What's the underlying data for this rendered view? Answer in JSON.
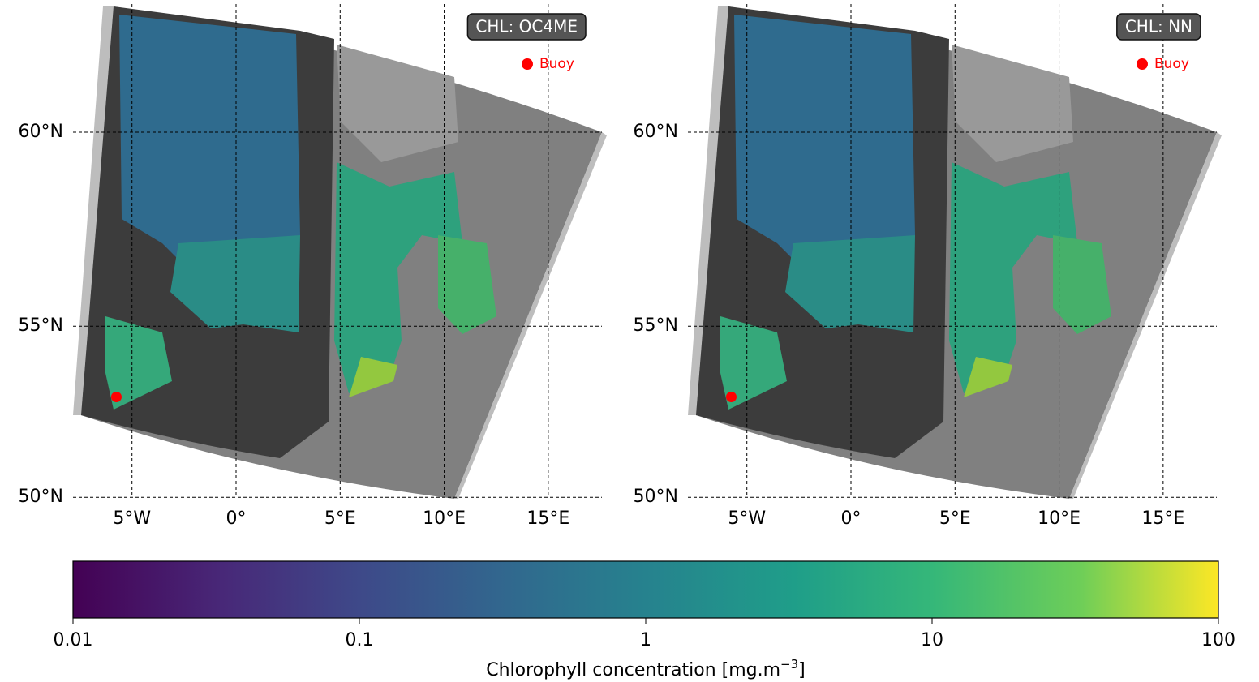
{
  "panels": [
    {
      "title": "CHL: OC4ME",
      "legend": "Buoy"
    },
    {
      "title": "CHL: NN",
      "legend": "Buoy"
    }
  ],
  "map": {
    "projection": "mercator",
    "grid": true,
    "lon_ticks": [
      {
        "value": -5,
        "label": "5°W"
      },
      {
        "value": 0,
        "label": "0°"
      },
      {
        "value": 5,
        "label": "5°E"
      },
      {
        "value": 10,
        "label": "10°E"
      },
      {
        "value": 15,
        "label": "15°E"
      }
    ],
    "lat_ticks": [
      {
        "value": 60,
        "label": "60°N"
      },
      {
        "value": 55,
        "label": "55°N"
      },
      {
        "value": 50,
        "label": "50°N"
      }
    ],
    "buoy": {
      "lon": -5.75,
      "lat": 53.0,
      "color": "red"
    }
  },
  "colorbar": {
    "scale": "log",
    "lim": [
      0.01,
      100
    ],
    "ticks": [
      0.01,
      0.1,
      1,
      10,
      100
    ],
    "label": "Chlorophyll concentration [mg.m",
    "label_exponent": "−3",
    "label_close": "]"
  }
}
